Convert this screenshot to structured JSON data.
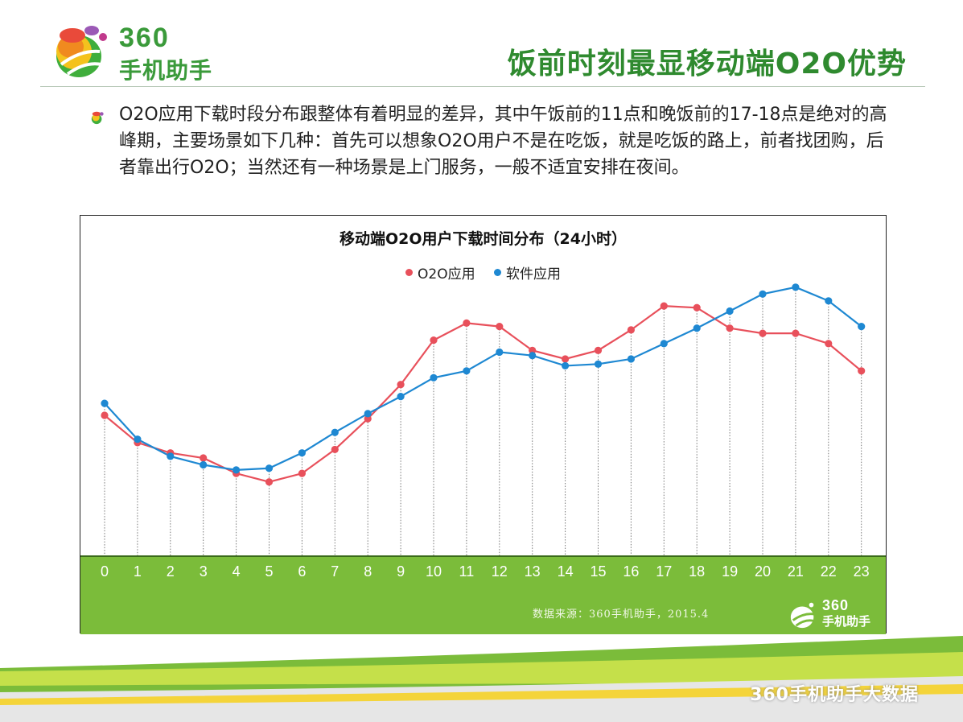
{
  "header": {
    "logo_number": "360",
    "logo_name": "手机助手",
    "title": "饭前时刻最显移动端O2O优势"
  },
  "bullet": {
    "text": "O2O应用下载时段分布跟整体有着明显的差异，其中午饭前的11点和晚饭前的17-18点是绝对的高峰期，主要场景如下几种：首先可以想象O2O用户不是在吃饭，就是吃饭的路上，前者找团购，后者靠出行O2O；当然还有一种场景是上门服务，一般不适宜安排在夜间。"
  },
  "chart_data": {
    "type": "line",
    "title": "移动端O2O用户下载时间分布（24小时）",
    "categories": [
      "0",
      "1",
      "2",
      "3",
      "4",
      "5",
      "6",
      "7",
      "8",
      "9",
      "10",
      "11",
      "12",
      "13",
      "14",
      "15",
      "16",
      "17",
      "18",
      "19",
      "20",
      "21",
      "22",
      "23"
    ],
    "series": [
      {
        "name": "O2O应用",
        "color": "#e8505b",
        "values": [
          41,
          33,
          30,
          28.5,
          24,
          21.5,
          24,
          31,
          40,
          50,
          63,
          68,
          67,
          60,
          57.5,
          60,
          66,
          73,
          72.5,
          66.5,
          65,
          65,
          62,
          54
        ]
      },
      {
        "name": "软件应用",
        "color": "#1e88d2",
        "values": [
          44.5,
          34,
          29,
          26.5,
          25,
          25.5,
          30,
          36,
          41.5,
          46.5,
          52,
          54,
          59.5,
          58.5,
          55.5,
          56,
          57.5,
          62,
          66.5,
          71.5,
          76.5,
          78.5,
          74.5,
          67
        ]
      }
    ],
    "ylim": [
      0,
      90
    ],
    "grid": "vertical dotted drop lines",
    "legend": "top-center"
  },
  "source_note": "数据来源：360手机助手，2015.4",
  "band_logo": {
    "number": "360",
    "name": "手机助手"
  },
  "footer_watermark": "360手机助手大数据"
}
